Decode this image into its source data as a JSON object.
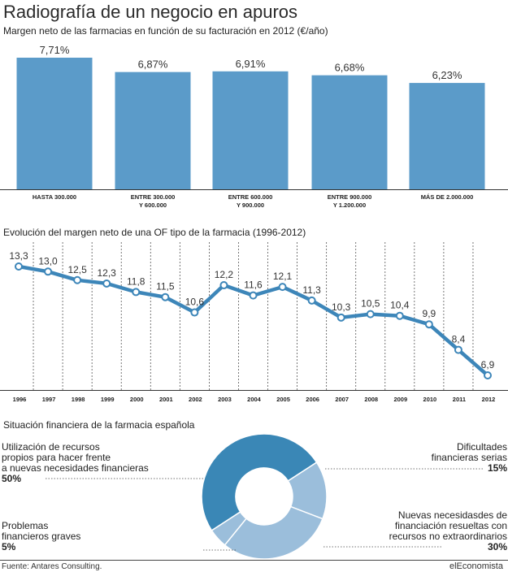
{
  "main_title": "Radiografía de un negocio en apuros",
  "source": "Fuente: Antares Consulting.",
  "brand": "elEconomista",
  "colors": {
    "bar": "#5b9bc9",
    "line": "#3d86b9",
    "donut_dark": "#3a87b6",
    "donut_light": "#9bbedb"
  },
  "chart_data": [
    {
      "type": "bar",
      "title": "Margen neto de las farmacias en función de su facturación en 2012 (€/año)",
      "categories": [
        [
          "HASTA 300.000"
        ],
        [
          "ENTRE 300.000",
          "Y 600.000"
        ],
        [
          "ENTRE 600.000",
          "Y 900.000"
        ],
        [
          "ENTRE 900.000",
          "Y 1.200.000"
        ],
        [
          "MÁS DE 2.000.000"
        ]
      ],
      "values": [
        7.71,
        6.87,
        6.91,
        6.68,
        6.23
      ],
      "value_labels": [
        "7,71%",
        "6,87%",
        "6,91%",
        "6,68%",
        "6,23%"
      ],
      "ylim": [
        0,
        7.71
      ]
    },
    {
      "type": "line",
      "title": "Evolución del margen neto de una OF tipo de la farmacia (1996-2012)",
      "x": [
        "1996",
        "1997",
        "1998",
        "1999",
        "2000",
        "2001",
        "2002",
        "2003",
        "2004",
        "2005",
        "2006",
        "2007",
        "2008",
        "2009",
        "2010",
        "2011",
        "2012"
      ],
      "values": [
        13.3,
        13.0,
        12.5,
        12.3,
        11.8,
        11.5,
        10.6,
        12.2,
        11.6,
        12.1,
        11.3,
        10.3,
        10.5,
        10.4,
        9.9,
        8.4,
        6.9
      ],
      "value_labels": [
        "13,3",
        "13,0",
        "12,5",
        "12,3",
        "11,8",
        "11,5",
        "10,6",
        "12,2",
        "11,6",
        "12,1",
        "11,3",
        "10,3",
        "10,5",
        "10,4",
        "9,9",
        "8,4",
        "6,9"
      ],
      "grid": "vertical dashed"
    },
    {
      "type": "pie",
      "title": "Situación financiera de la farmacia española",
      "slices": [
        {
          "label": "Utilización de recursos propios para hacer frente a nuevas necesidades financieras",
          "lines": [
            "Utilización de recursos",
            "propios para hacer frente",
            "a nuevas necesidades financieras"
          ],
          "value": 50,
          "pct_label": "50%",
          "color": "#3a87b6"
        },
        {
          "label": "Dificultades financieras serias",
          "lines": [
            "Dificultades",
            "financieras serias"
          ],
          "value": 15,
          "pct_label": "15%",
          "color": "#9bbedb"
        },
        {
          "label": "Nuevas necesidasdes de financiación resueltas con recursos no extraordinarios",
          "lines": [
            "Nuevas necesidasdes de",
            "financiación resueltas con",
            "recursos no extraordinarios"
          ],
          "value": 30,
          "pct_label": "30%",
          "color": "#9bbedb"
        },
        {
          "label": "Problemas financieros graves",
          "lines": [
            "Problemas",
            "financieros graves"
          ],
          "value": 5,
          "pct_label": "5%",
          "color": "#9bbedb"
        }
      ]
    }
  ]
}
